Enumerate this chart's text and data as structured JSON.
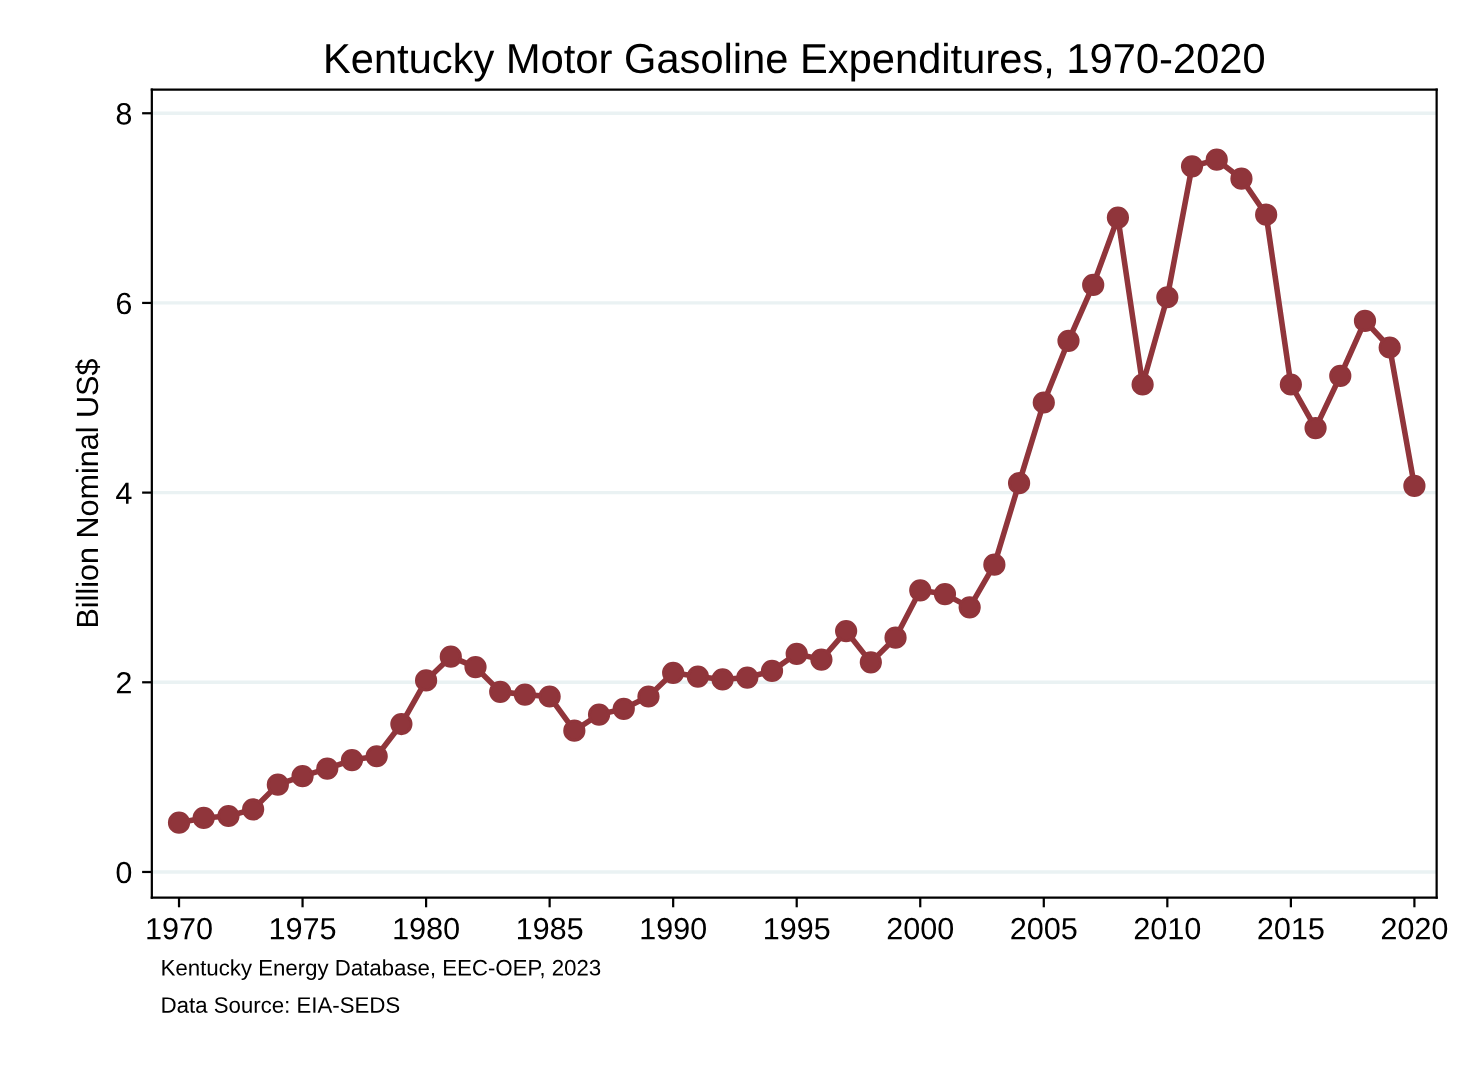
{
  "chart_data": {
    "type": "line",
    "title": "Kentucky Motor Gasoline Expenditures, 1970-2020",
    "ylabel": "Billion Nominal US$",
    "x": [
      1970,
      1971,
      1972,
      1973,
      1974,
      1975,
      1976,
      1977,
      1978,
      1979,
      1980,
      1981,
      1982,
      1983,
      1984,
      1985,
      1986,
      1987,
      1988,
      1989,
      1990,
      1991,
      1992,
      1993,
      1994,
      1995,
      1996,
      1997,
      1998,
      1999,
      2000,
      2001,
      2002,
      2003,
      2004,
      2005,
      2006,
      2007,
      2008,
      2009,
      2010,
      2011,
      2012,
      2013,
      2014,
      2015,
      2016,
      2017,
      2018,
      2019,
      2020
    ],
    "series": [
      {
        "color": "#90353b",
        "values": [
          0.52,
          0.57,
          0.59,
          0.66,
          0.92,
          1.01,
          1.09,
          1.18,
          1.22,
          1.56,
          2.02,
          2.27,
          2.16,
          1.9,
          1.87,
          1.85,
          1.49,
          1.66,
          1.72,
          1.85,
          2.1,
          2.06,
          2.03,
          2.05,
          2.12,
          2.3,
          2.24,
          2.54,
          2.21,
          2.47,
          2.97,
          2.93,
          2.79,
          3.24,
          4.1,
          4.95,
          5.6,
          6.19,
          6.9,
          5.14,
          6.06,
          7.44,
          7.51,
          7.31,
          6.93,
          5.14,
          4.68,
          5.23,
          5.81,
          5.53,
          4.07
        ]
      }
    ],
    "xlim": [
      1968.9,
      2020.9
    ],
    "xticks": [
      1970,
      1975,
      1980,
      1985,
      1990,
      1995,
      2000,
      2005,
      2010,
      2015,
      2020
    ],
    "ylim": [
      -0.27,
      8.25
    ],
    "yticks": [
      0,
      2,
      4,
      6,
      8
    ],
    "grid": "y",
    "marker": "circle",
    "line_style": "solid",
    "legend": false,
    "annotations": [
      "Kentucky Energy Database, EEC-OEP, 2023",
      "Data Source: EIA-SEDS"
    ]
  }
}
